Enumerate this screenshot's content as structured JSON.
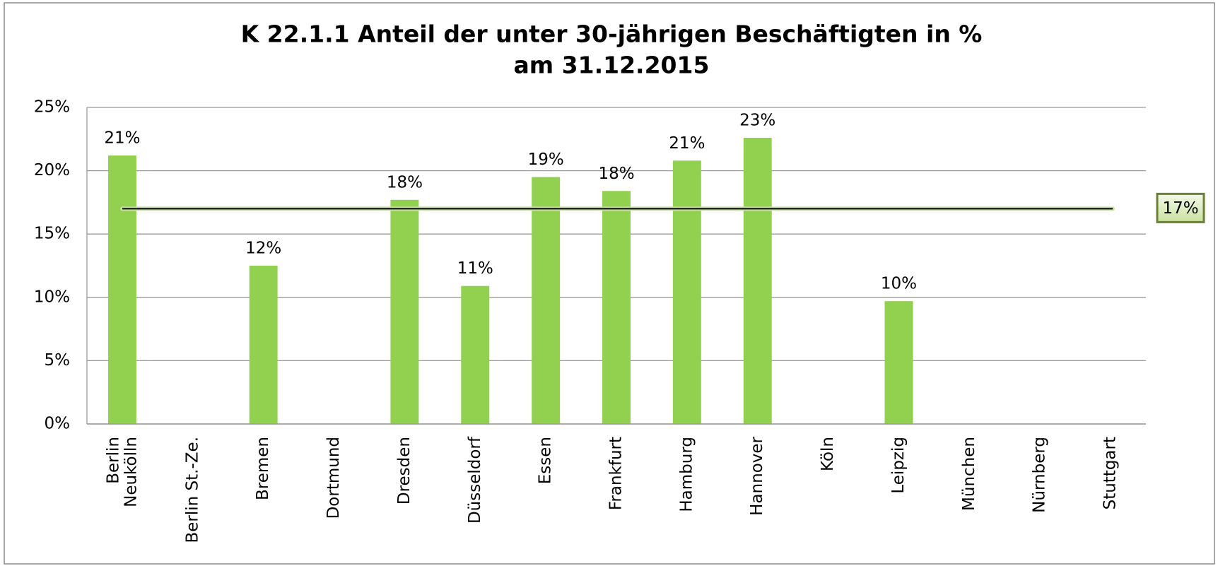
{
  "chart_data": {
    "type": "bar",
    "title": "K 22.1.1   Anteil der unter 30-jährigen Beschäftigten in %",
    "subtitle": "am 31.12.2015",
    "categories": [
      "Berlin\nNeukölln",
      "Berlin St.-Ze.",
      "Bremen",
      "Dortmund",
      "Dresden",
      "Düsseldorf",
      "Essen",
      "Frankfurt",
      "Hamburg",
      "Hannover",
      "Köln",
      "Leipzig",
      "München",
      "Nürnberg",
      "Stuttgart"
    ],
    "values": [
      21.2,
      null,
      12.5,
      null,
      17.7,
      10.9,
      19.5,
      18.4,
      20.8,
      22.6,
      null,
      9.7,
      null,
      null,
      null
    ],
    "value_labels": [
      "21%",
      null,
      "12%",
      null,
      "18%",
      "11%",
      "19%",
      "18%",
      "21%",
      "23%",
      null,
      "10%",
      null,
      null,
      null
    ],
    "color": "#92d050",
    "average": {
      "value": 17,
      "label": "17%"
    },
    "ylim": [
      0,
      25
    ],
    "yticks": [
      {
        "value": 0,
        "label": "0%"
      },
      {
        "value": 5,
        "label": "5%"
      },
      {
        "value": 10,
        "label": "10%"
      },
      {
        "value": 15,
        "label": "15%"
      },
      {
        "value": 20,
        "label": "20%"
      },
      {
        "value": 25,
        "label": "25%"
      }
    ],
    "grid": true
  }
}
